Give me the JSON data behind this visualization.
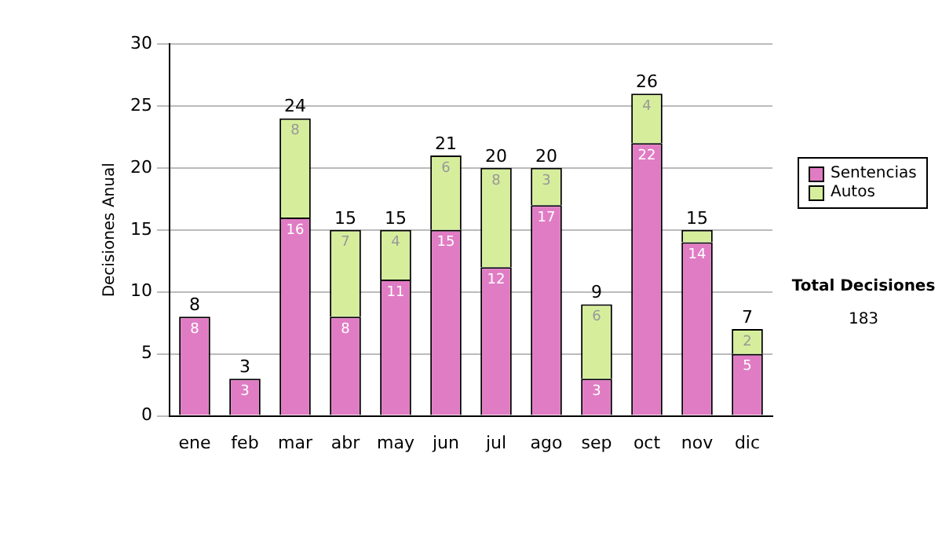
{
  "chart_data": {
    "type": "bar",
    "stacked": true,
    "ylabel": "Decisiones Anual",
    "categories": [
      "ene",
      "feb",
      "mar",
      "abr",
      "may",
      "jun",
      "jul",
      "ago",
      "sep",
      "oct",
      "nov",
      "dic"
    ],
    "series": [
      {
        "name": "Sentencias",
        "color": "#e07cc4",
        "values": [
          8,
          3,
          16,
          8,
          11,
          15,
          12,
          17,
          3,
          22,
          14,
          5
        ],
        "value_labels": [
          "8",
          "3",
          "16",
          "8",
          "11",
          "15",
          "12",
          "17",
          "3",
          "22",
          "14",
          "5"
        ]
      },
      {
        "name": "Autos",
        "color": "#d6ee9c",
        "values": [
          0,
          0,
          8,
          7,
          4,
          6,
          8,
          3,
          6,
          4,
          1,
          2
        ],
        "value_labels": [
          null,
          null,
          "8",
          "7",
          "4",
          "6",
          "8",
          "3",
          "6",
          "4",
          null,
          "2"
        ]
      }
    ],
    "totals": [
      "8",
      "3",
      "24",
      "15",
      "15",
      "21",
      "20",
      "20",
      "9",
      "26",
      "15",
      "7"
    ],
    "ylim": [
      0,
      30
    ],
    "yticks": [
      0,
      5,
      10,
      15,
      20,
      25,
      30
    ],
    "grid": "y",
    "legend": "right",
    "annotations": [
      "Total Decisiones",
      "183"
    ]
  }
}
